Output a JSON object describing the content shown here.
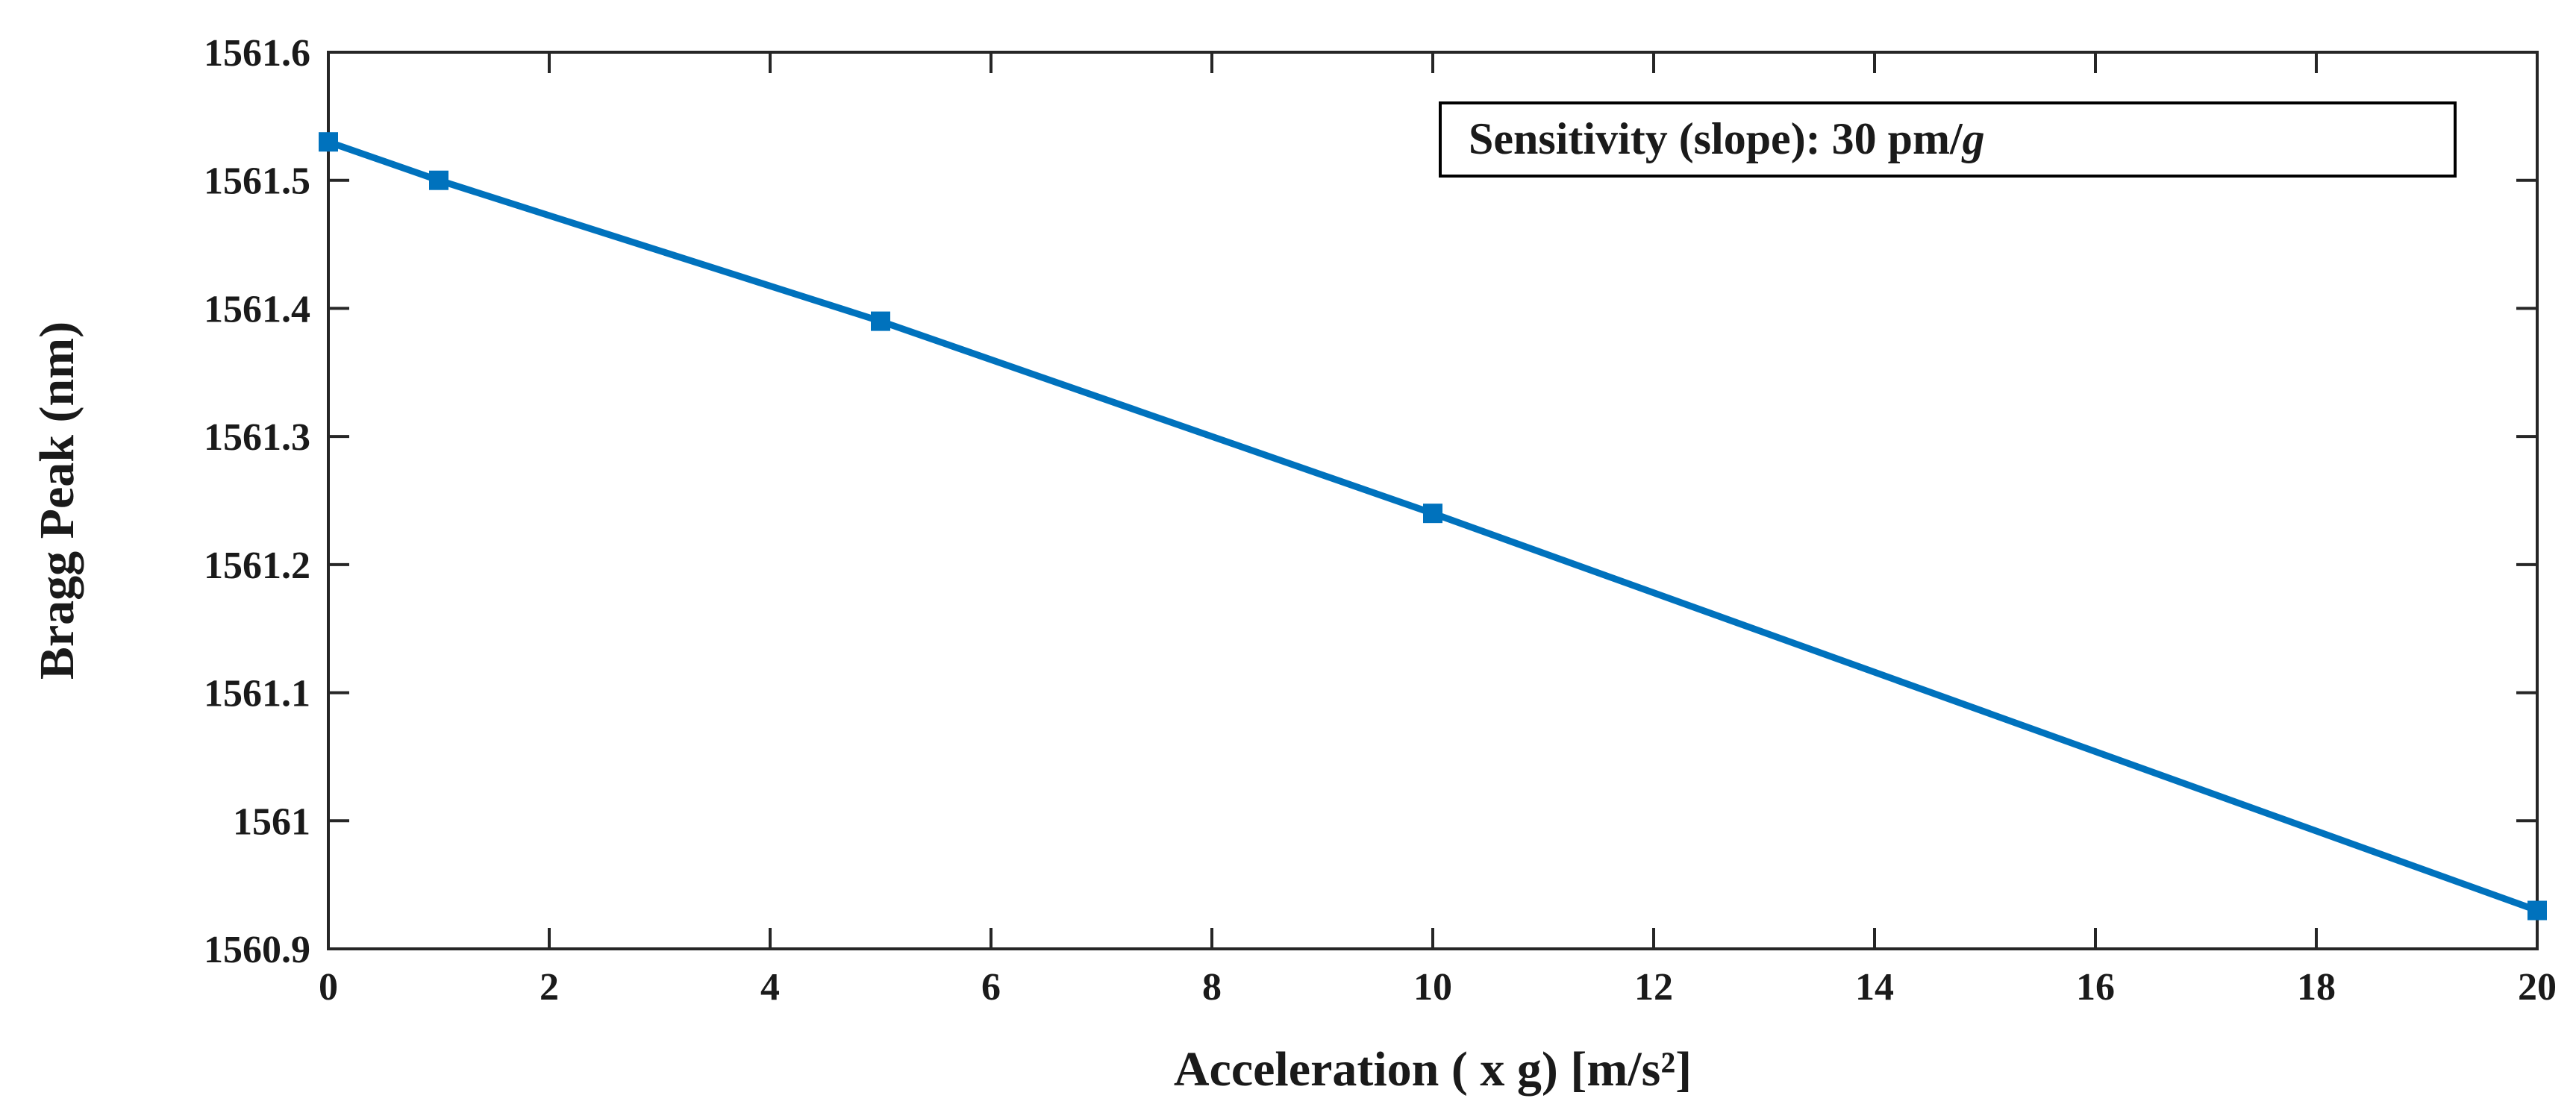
{
  "chart_data": {
    "type": "line",
    "title": "",
    "xlabel": "Acceleration ( x g) [m/s²]",
    "ylabel": "Bragg Peak (nm)",
    "xlim": [
      0,
      20
    ],
    "ylim": [
      1560.9,
      1561.6
    ],
    "x_ticks": [
      0,
      2,
      4,
      6,
      8,
      10,
      12,
      14,
      16,
      18,
      20
    ],
    "x_tick_labels": [
      "0",
      "2",
      "4",
      "6",
      "8",
      "10",
      "12",
      "14",
      "16",
      "18",
      "20"
    ],
    "y_ticks": [
      1560.9,
      1561.0,
      1561.1,
      1561.2,
      1561.3,
      1561.4,
      1561.5,
      1561.6
    ],
    "y_tick_labels": [
      "1560.9",
      "1561",
      "1561.1",
      "1561.2",
      "1561.3",
      "1561.4",
      "1561.5",
      "1561.6"
    ],
    "grid": false,
    "series": [
      {
        "x": [
          0,
          1,
          5,
          10,
          20
        ],
        "y": [
          1561.53,
          1561.5,
          1561.39,
          1561.24,
          1560.93
        ],
        "color": "#0072bd",
        "marker": "square"
      }
    ],
    "annotation": {
      "text": "Sensitivity (slope): 30 pm/",
      "italic_suffix": "g",
      "placement": "top-right"
    }
  }
}
